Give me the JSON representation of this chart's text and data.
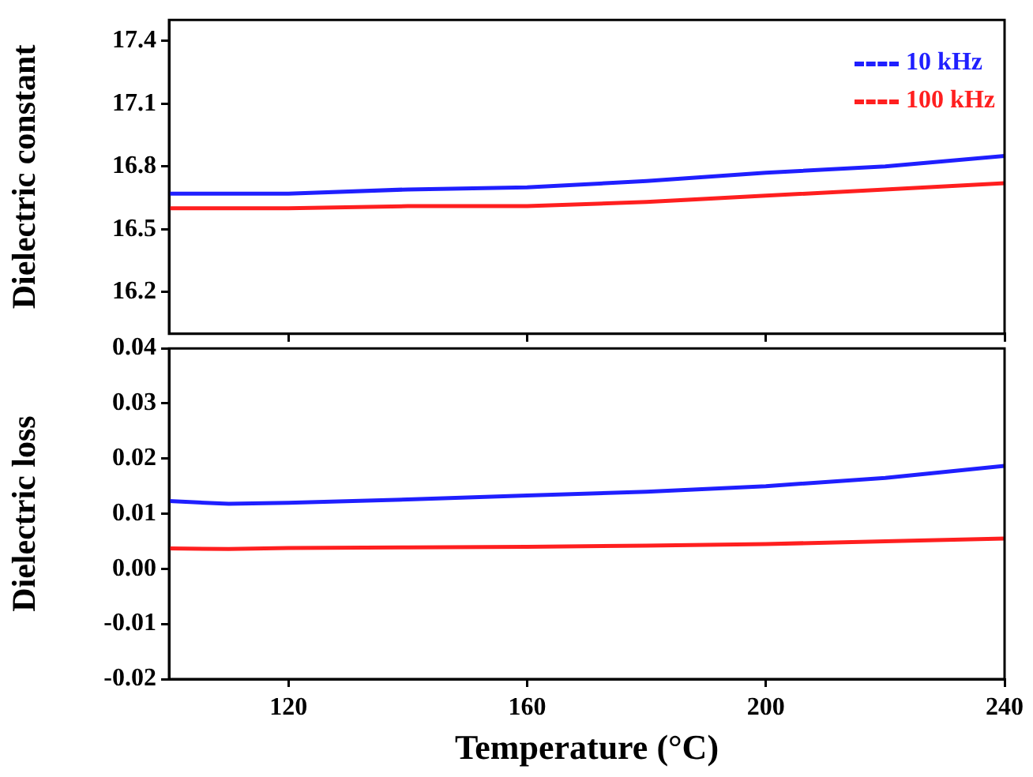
{
  "chart_data": [
    {
      "type": "line",
      "ylabel": "Dielectric constant",
      "x": [
        100,
        110,
        120,
        140,
        160,
        180,
        200,
        220,
        240
      ],
      "xlim": [
        100,
        240
      ],
      "xticks": [
        120,
        160,
        200,
        240
      ],
      "ylim": [
        16.0,
        17.5
      ],
      "yticks": [
        16.2,
        16.5,
        16.8,
        17.1,
        17.4
      ],
      "tick_labels": "y",
      "legend": "top right",
      "grid": false,
      "marker": "none",
      "line_style": "solid",
      "series": [
        {
          "name": "10 kHz",
          "color": "#1f1fff",
          "values": [
            16.67,
            16.67,
            16.67,
            16.69,
            16.7,
            16.73,
            16.77,
            16.8,
            16.85
          ]
        },
        {
          "name": "100 kHz",
          "color": "#ff1f1f",
          "values": [
            16.6,
            16.6,
            16.6,
            16.61,
            16.61,
            16.63,
            16.66,
            16.69,
            16.72
          ]
        }
      ]
    },
    {
      "type": "line",
      "xlabel": "Temperature (°C)",
      "ylabel": "Dielectric loss",
      "x": [
        100,
        110,
        120,
        140,
        160,
        180,
        200,
        220,
        240
      ],
      "xlim": [
        100,
        240
      ],
      "xticks": [
        120,
        160,
        200,
        240
      ],
      "ylim": [
        -0.02,
        0.04
      ],
      "yticks": [
        -0.02,
        -0.01,
        {
          "value": 0,
          "label": "0.00"
        },
        0.01,
        0.02,
        0.03,
        0.04
      ],
      "grid": false,
      "marker": "none",
      "line_style": "solid",
      "series": [
        {
          "color": "#1f1fff",
          "values": [
            0.0123,
            0.0118,
            0.012,
            0.0126,
            0.0133,
            0.014,
            0.015,
            0.0165,
            0.0187
          ]
        },
        {
          "color": "#ff1f1f",
          "values": [
            0.0037,
            0.0036,
            0.0038,
            0.0039,
            0.004,
            0.0042,
            0.0045,
            0.005,
            0.0055
          ]
        }
      ]
    }
  ]
}
